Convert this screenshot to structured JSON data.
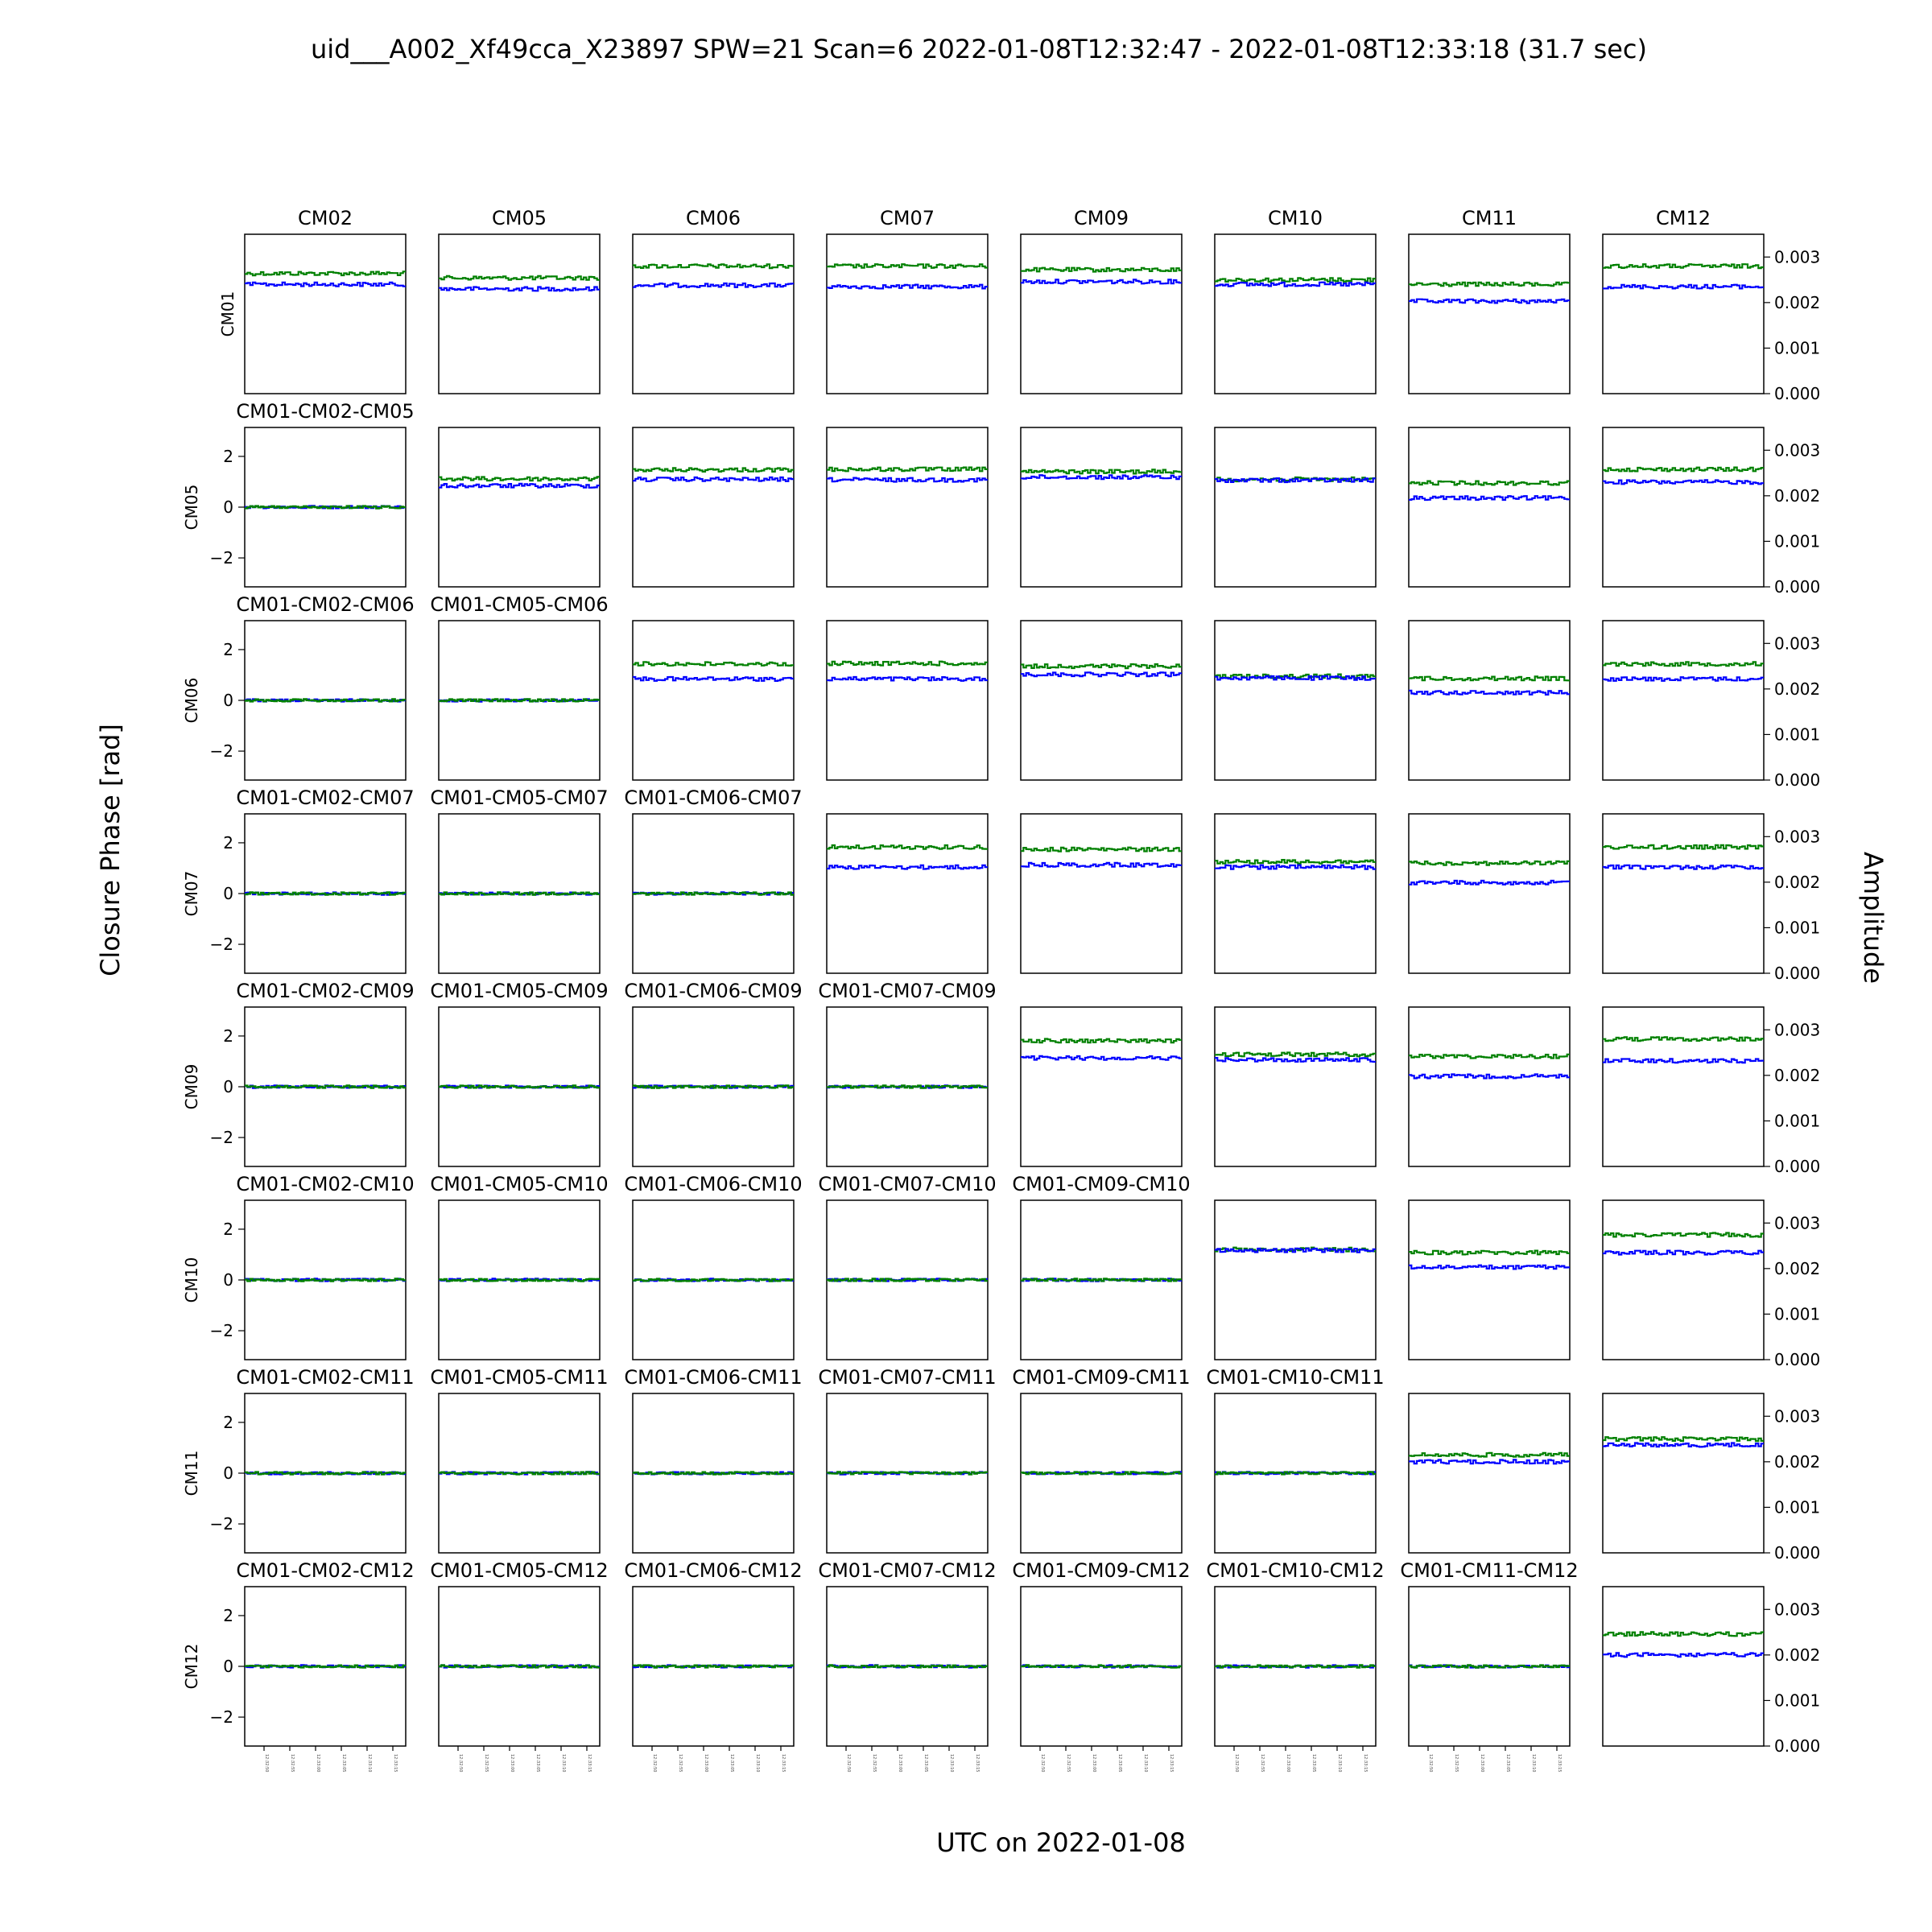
{
  "figure": {
    "title": "uid___A002_Xf49cca_X23897 SPW=21 Scan=6 2022-01-08T12:32:47 - 2022-01-08T12:33:18 (31.7 sec)",
    "xlabel": "UTC on 2022-01-08",
    "ylabel_left": "Closure Phase [rad]",
    "ylabel_right": "Amplitude"
  },
  "colors": {
    "pol_xx": "#0000ff",
    "pol_yy": "#008000",
    "axis": "#000000"
  },
  "chart_data": {
    "type": "line",
    "layout": "8x8 subplot grid: upper-right triangle shows baseline amplitude, lower-left triangle shows closure phase",
    "col_antennas": [
      "CM02",
      "CM05",
      "CM06",
      "CM07",
      "CM09",
      "CM10",
      "CM11",
      "CM12"
    ],
    "row_antennas": [
      "CM01",
      "CM05",
      "CM06",
      "CM07",
      "CM09",
      "CM10",
      "CM11",
      "CM12"
    ],
    "amplitude_axis": {
      "ylim": [
        0,
        0.0035
      ],
      "ticks": [
        "0.000",
        "0.001",
        "0.002",
        "0.003"
      ]
    },
    "phase_axis": {
      "ylim": [
        -3.14,
        3.14
      ],
      "ticks": [
        "2",
        "0",
        "−2"
      ]
    },
    "time_axis": {
      "start": "12:32:47",
      "end": "12:33:18",
      "duration_sec": 31.7
    },
    "amplitude_panels": [
      {
        "row": "CM01",
        "col": "CM02",
        "green": 0.00264,
        "blue": 0.0024
      },
      {
        "row": "CM01",
        "col": "CM05",
        "green": 0.00254,
        "blue": 0.0023
      },
      {
        "row": "CM01",
        "col": "CM06",
        "green": 0.0028,
        "blue": 0.00238
      },
      {
        "row": "CM01",
        "col": "CM07",
        "green": 0.0028,
        "blue": 0.00235
      },
      {
        "row": "CM01",
        "col": "CM09",
        "green": 0.00272,
        "blue": 0.00246
      },
      {
        "row": "CM01",
        "col": "CM10",
        "green": 0.0025,
        "blue": 0.0024
      },
      {
        "row": "CM01",
        "col": "CM11",
        "green": 0.0024,
        "blue": 0.00203
      },
      {
        "row": "CM01",
        "col": "CM12",
        "green": 0.0028,
        "blue": 0.00235
      },
      {
        "row": "CM05",
        "col": "CM05",
        "green": 0.00237,
        "blue": 0.00222
      },
      {
        "row": "CM05",
        "col": "CM06",
        "green": 0.00257,
        "blue": 0.00236
      },
      {
        "row": "CM05",
        "col": "CM07",
        "green": 0.00258,
        "blue": 0.00235
      },
      {
        "row": "CM05",
        "col": "CM09",
        "green": 0.00253,
        "blue": 0.00241
      },
      {
        "row": "CM05",
        "col": "CM10",
        "green": 0.00236,
        "blue": 0.00234
      },
      {
        "row": "CM05",
        "col": "CM11",
        "green": 0.00228,
        "blue": 0.00195
      },
      {
        "row": "CM05",
        "col": "CM12",
        "green": 0.00258,
        "blue": 0.0023
      },
      {
        "row": "CM06",
        "col": "CM06",
        "green": 0.00255,
        "blue": 0.00222
      },
      {
        "row": "CM06",
        "col": "CM07",
        "green": 0.00256,
        "blue": 0.00222
      },
      {
        "row": "CM06",
        "col": "CM09",
        "green": 0.0025,
        "blue": 0.00232
      },
      {
        "row": "CM06",
        "col": "CM10",
        "green": 0.00228,
        "blue": 0.00224
      },
      {
        "row": "CM06",
        "col": "CM11",
        "green": 0.00223,
        "blue": 0.00192
      },
      {
        "row": "CM06",
        "col": "CM12",
        "green": 0.00255,
        "blue": 0.00222
      },
      {
        "row": "CM07",
        "col": "CM07",
        "green": 0.00277,
        "blue": 0.00233
      },
      {
        "row": "CM07",
        "col": "CM09",
        "green": 0.00272,
        "blue": 0.00238
      },
      {
        "row": "CM07",
        "col": "CM10",
        "green": 0.00245,
        "blue": 0.00233
      },
      {
        "row": "CM07",
        "col": "CM11",
        "green": 0.00242,
        "blue": 0.00199
      },
      {
        "row": "CM07",
        "col": "CM12",
        "green": 0.00277,
        "blue": 0.00233
      },
      {
        "row": "CM09",
        "col": "CM09",
        "green": 0.00276,
        "blue": 0.00238
      },
      {
        "row": "CM09",
        "col": "CM10",
        "green": 0.00246,
        "blue": 0.00234
      },
      {
        "row": "CM09",
        "col": "CM11",
        "green": 0.00242,
        "blue": 0.00198
      },
      {
        "row": "CM09",
        "col": "CM12",
        "green": 0.0028,
        "blue": 0.00232
      },
      {
        "row": "CM10",
        "col": "CM10",
        "green": 0.00242,
        "blue": 0.0024
      },
      {
        "row": "CM10",
        "col": "CM11",
        "green": 0.00235,
        "blue": 0.00203
      },
      {
        "row": "CM10",
        "col": "CM12",
        "green": 0.00274,
        "blue": 0.00235
      },
      {
        "row": "CM11",
        "col": "CM11",
        "green": 0.00215,
        "blue": 0.002
      },
      {
        "row": "CM11",
        "col": "CM12",
        "green": 0.0025,
        "blue": 0.00237
      },
      {
        "row": "CM12",
        "col": "CM12",
        "green": 0.00246,
        "blue": 0.002
      }
    ],
    "closure_phase_panels": [
      {
        "row": "CM05",
        "col": "CM02",
        "title": "CM01-CM02-CM05",
        "value": 0.0
      },
      {
        "row": "CM06",
        "col": "CM02",
        "title": "CM01-CM02-CM06",
        "value": 0.0
      },
      {
        "row": "CM06",
        "col": "CM05",
        "title": "CM01-CM05-CM06",
        "value": 0.0
      },
      {
        "row": "CM07",
        "col": "CM02",
        "title": "CM01-CM02-CM07",
        "value": 0.0
      },
      {
        "row": "CM07",
        "col": "CM05",
        "title": "CM01-CM05-CM07",
        "value": 0.0
      },
      {
        "row": "CM07",
        "col": "CM06",
        "title": "CM01-CM06-CM07",
        "value": 0.0
      },
      {
        "row": "CM09",
        "col": "CM02",
        "title": "CM01-CM02-CM09",
        "value": 0.0
      },
      {
        "row": "CM09",
        "col": "CM05",
        "title": "CM01-CM05-CM09",
        "value": 0.0
      },
      {
        "row": "CM09",
        "col": "CM06",
        "title": "CM01-CM06-CM09",
        "value": 0.0
      },
      {
        "row": "CM09",
        "col": "CM07",
        "title": "CM01-CM07-CM09",
        "value": 0.0
      },
      {
        "row": "CM10",
        "col": "CM02",
        "title": "CM01-CM02-CM10",
        "value": 0.0
      },
      {
        "row": "CM10",
        "col": "CM05",
        "title": "CM01-CM05-CM10",
        "value": 0.0
      },
      {
        "row": "CM10",
        "col": "CM06",
        "title": "CM01-CM06-CM10",
        "value": 0.0
      },
      {
        "row": "CM10",
        "col": "CM07",
        "title": "CM01-CM07-CM10",
        "value": 0.0
      },
      {
        "row": "CM10",
        "col": "CM09",
        "title": "CM01-CM09-CM10",
        "value": 0.0
      },
      {
        "row": "CM11",
        "col": "CM02",
        "title": "CM01-CM02-CM11",
        "value": 0.0
      },
      {
        "row": "CM11",
        "col": "CM05",
        "title": "CM01-CM05-CM11",
        "value": 0.0
      },
      {
        "row": "CM11",
        "col": "CM06",
        "title": "CM01-CM06-CM11",
        "value": 0.0
      },
      {
        "row": "CM11",
        "col": "CM07",
        "title": "CM01-CM07-CM11",
        "value": 0.0
      },
      {
        "row": "CM11",
        "col": "CM09",
        "title": "CM01-CM09-CM11",
        "value": 0.0
      },
      {
        "row": "CM11",
        "col": "CM10",
        "title": "CM01-CM10-CM11",
        "value": 0.0
      },
      {
        "row": "CM12",
        "col": "CM02",
        "title": "CM01-CM02-CM12",
        "value": 0.0
      },
      {
        "row": "CM12",
        "col": "CM05",
        "title": "CM01-CM05-CM12",
        "value": 0.0
      },
      {
        "row": "CM12",
        "col": "CM06",
        "title": "CM01-CM06-CM12",
        "value": 0.0
      },
      {
        "row": "CM12",
        "col": "CM07",
        "title": "CM01-CM07-CM12",
        "value": 0.0
      },
      {
        "row": "CM12",
        "col": "CM09",
        "title": "CM01-CM09-CM12",
        "value": 0.0
      },
      {
        "row": "CM12",
        "col": "CM10",
        "title": "CM01-CM10-CM12",
        "value": 0.0
      },
      {
        "row": "CM12",
        "col": "CM11",
        "title": "CM01-CM11-CM12",
        "value": 0.0
      }
    ],
    "xtick_labels": [
      "12:32:50",
      "12:32:55",
      "12:33:00",
      "12:33:05",
      "12:33:10",
      "12:33:15"
    ]
  }
}
